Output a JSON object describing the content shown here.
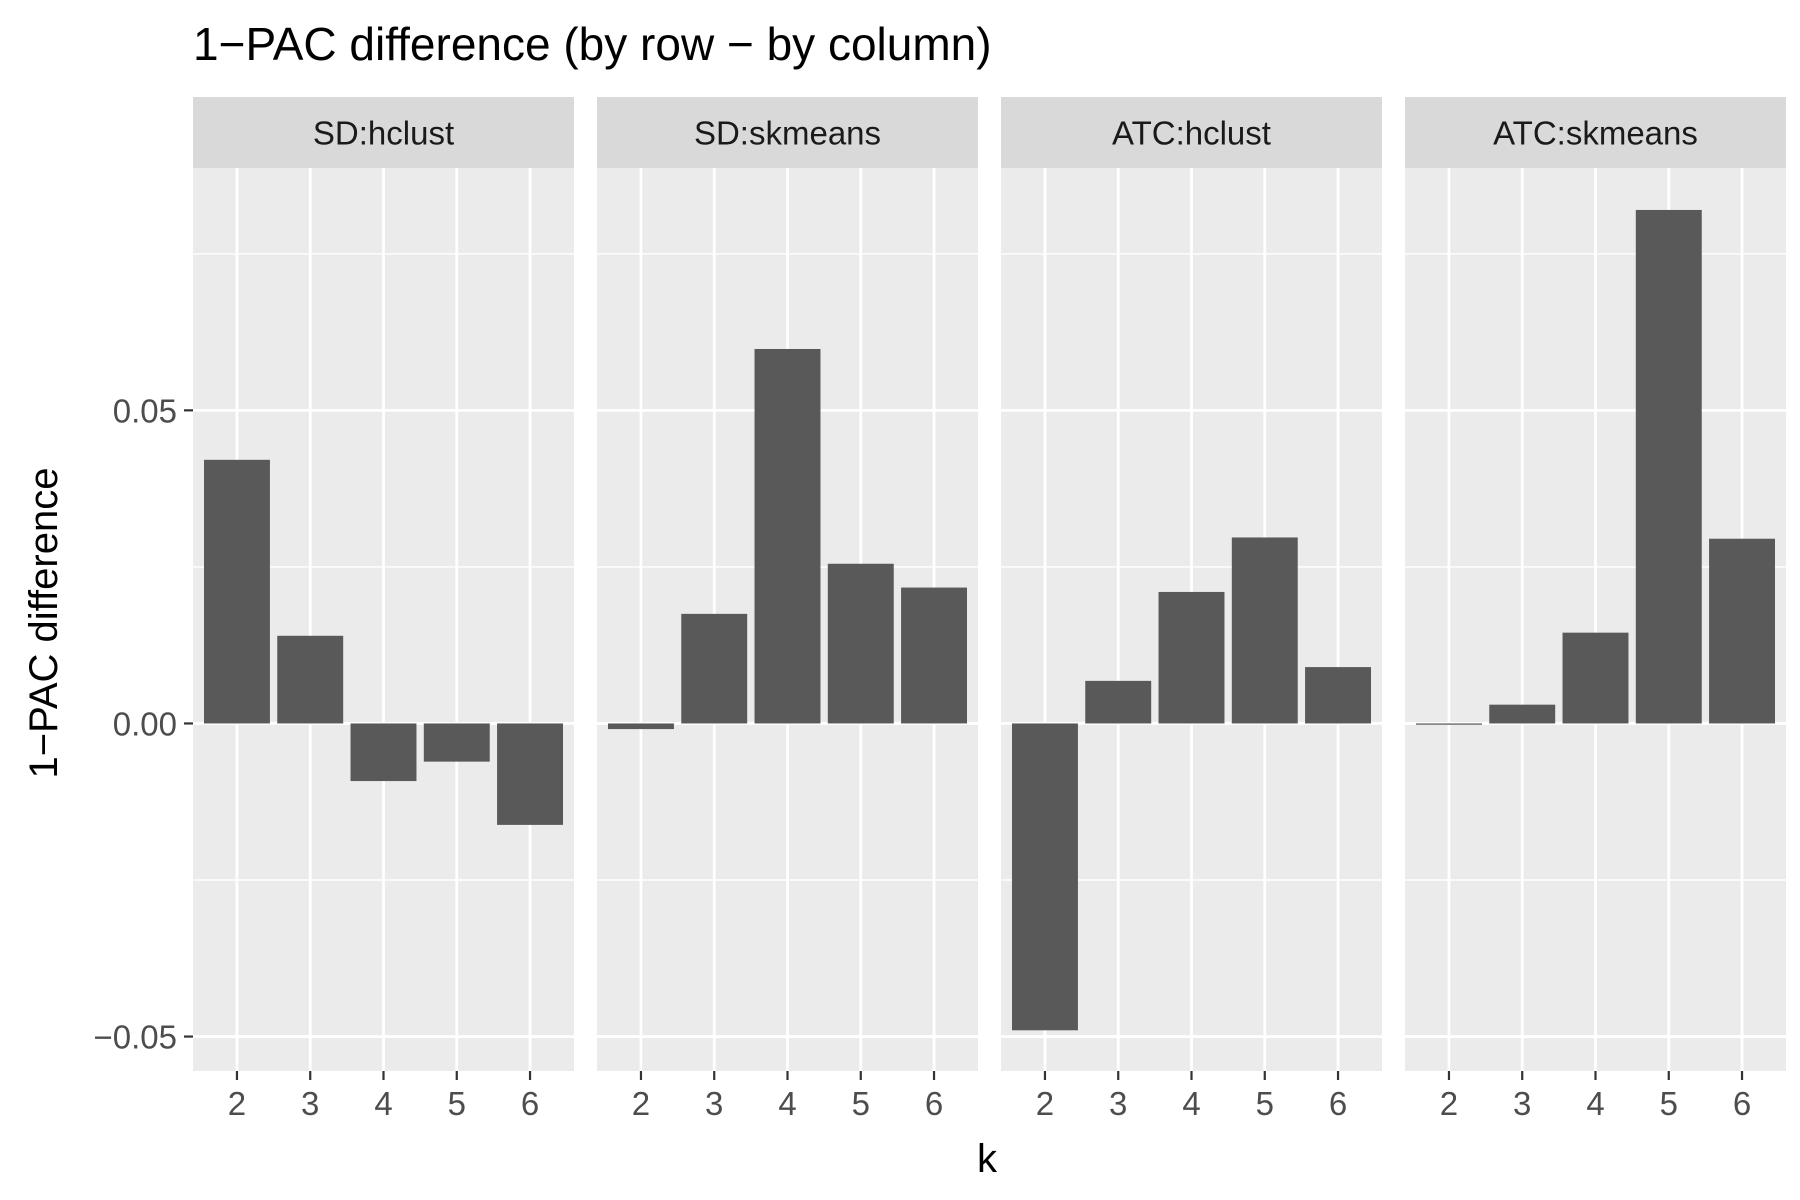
{
  "chart_data": {
    "type": "bar",
    "title": "1−PAC difference (by row − by column)",
    "xlabel": "k",
    "ylabel": "1−PAC difference",
    "categories": [
      "2",
      "3",
      "4",
      "5",
      "6"
    ],
    "ylim": [
      -0.0555,
      0.0887
    ],
    "yticks": [
      {
        "value": 0.05,
        "label": "0.05"
      },
      {
        "value": 0.0,
        "label": "0.00"
      },
      {
        "value": -0.05,
        "label": "−0.05"
      }
    ],
    "grid": true,
    "facets": [
      {
        "name": "SD:hclust",
        "values": [
          0.0421,
          0.014,
          -0.0092,
          -0.0061,
          -0.0162
        ]
      },
      {
        "name": "SD:skmeans",
        "values": [
          -0.0009,
          0.0175,
          0.0598,
          0.0255,
          0.0217
        ]
      },
      {
        "name": "ATC:hclust",
        "values": [
          -0.049,
          0.0068,
          0.021,
          0.0297,
          0.009
        ]
      },
      {
        "name": "ATC:skmeans",
        "values": [
          -0.0002,
          0.003,
          0.0145,
          0.082,
          0.0295
        ]
      }
    ],
    "colors": {
      "bar": "#595959",
      "panel_background": "#ebebeb",
      "strip_background": "#d9d9d9",
      "grid": "#ffffff"
    }
  }
}
